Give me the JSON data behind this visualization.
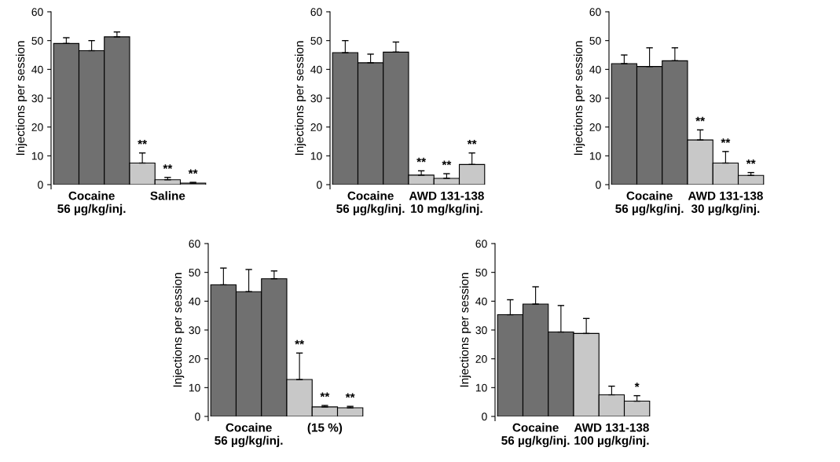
{
  "chart_data": [
    {
      "type": "bar",
      "ylabel": "Injections per session",
      "categories": [
        null,
        "Cocaine\n56 µg/kg/inj.",
        null,
        null,
        "Saline",
        null
      ],
      "values": [
        49,
        46.5,
        51.3,
        7.5,
        1.7,
        0.5
      ],
      "colors": [
        "#707070",
        "#707070",
        "#707070",
        "#c8c8c8",
        "#c8c8c8",
        "#c8c8c8"
      ],
      "errors": [
        [
          49,
          51
        ],
        [
          46.5,
          50
        ],
        [
          51.3,
          53
        ],
        [
          7.5,
          11
        ],
        [
          1.7,
          2.5
        ],
        [
          0.5,
          0.8
        ]
      ],
      "value_labels": [
        null,
        null,
        null,
        "**",
        "**",
        "**"
      ],
      "ylim": [
        0,
        60
      ],
      "yticks": [
        0,
        10,
        20,
        30,
        40,
        50,
        60
      ],
      "grid": false
    },
    {
      "type": "bar",
      "ylabel": "Injections per session",
      "categories": [
        null,
        "Cocaine\n56 µg/kg/inj.",
        null,
        null,
        "AWD 131-138\n10 mg/kg/inj.",
        null
      ],
      "values": [
        45.8,
        42.3,
        46,
        3.3,
        2.2,
        7
      ],
      "colors": [
        "#707070",
        "#707070",
        "#707070",
        "#c8c8c8",
        "#c8c8c8",
        "#c8c8c8"
      ],
      "errors": [
        [
          45.8,
          50
        ],
        [
          42.3,
          45.3
        ],
        [
          46,
          49.5
        ],
        [
          3.3,
          4.8
        ],
        [
          2.2,
          3.8
        ],
        [
          7,
          11
        ]
      ],
      "value_labels": [
        null,
        null,
        null,
        "**",
        "**",
        "**"
      ],
      "ylim": [
        0,
        60
      ],
      "yticks": [
        0,
        10,
        20,
        30,
        40,
        50,
        60
      ],
      "grid": false
    },
    {
      "type": "bar",
      "ylabel": "Injections per session",
      "categories": [
        null,
        "Cocaine\n56 µg/kg/inj.",
        null,
        null,
        "AWD 131-138\n30 µg/kg/inj.",
        null
      ],
      "values": [
        42,
        41,
        43,
        15.5,
        7.5,
        3.2
      ],
      "colors": [
        "#707070",
        "#707070",
        "#707070",
        "#c8c8c8",
        "#c8c8c8",
        "#c8c8c8"
      ],
      "errors": [
        [
          42,
          45
        ],
        [
          41,
          47.5
        ],
        [
          43,
          47.5
        ],
        [
          15.5,
          19
        ],
        [
          7.5,
          11.5
        ],
        [
          3.2,
          4.2
        ]
      ],
      "value_labels": [
        null,
        null,
        null,
        "**",
        "**",
        "**"
      ],
      "ylim": [
        0,
        60
      ],
      "yticks": [
        0,
        10,
        20,
        30,
        40,
        50,
        60
      ],
      "grid": false
    },
    {
      "type": "bar",
      "ylabel": "Injections per session",
      "categories": [
        null,
        "Cocaine\n56 µg/kg/inj.",
        null,
        null,
        "(15 %)",
        null
      ],
      "values": [
        45.7,
        43.3,
        47.8,
        12.8,
        3.3,
        3
      ],
      "colors": [
        "#707070",
        "#707070",
        "#707070",
        "#c8c8c8",
        "#c8c8c8",
        "#c8c8c8"
      ],
      "errors": [
        [
          45.7,
          51.5
        ],
        [
          43.3,
          51
        ],
        [
          47.8,
          50.5
        ],
        [
          12.8,
          22
        ],
        [
          3.3,
          3.8
        ],
        [
          3,
          3.5
        ]
      ],
      "value_labels": [
        null,
        null,
        null,
        "**",
        "**",
        "**"
      ],
      "ylim": [
        0,
        60
      ],
      "yticks": [
        0,
        10,
        20,
        30,
        40,
        50,
        60
      ],
      "grid": false
    },
    {
      "type": "bar",
      "ylabel": "Injections per session",
      "categories": [
        null,
        "Cocaine\n56 µg/kg/inj.",
        null,
        null,
        "AWD 131-138\n100 µg/kg/inj.",
        null
      ],
      "values": [
        35.3,
        39,
        29.3,
        28.8,
        7.5,
        5.3
      ],
      "colors": [
        "#707070",
        "#707070",
        "#707070",
        "#c8c8c8",
        "#c8c8c8",
        "#c8c8c8"
      ],
      "errors": [
        [
          35.3,
          40.5
        ],
        [
          39,
          45
        ],
        [
          29.3,
          38.5
        ],
        [
          28.8,
          34
        ],
        [
          7.5,
          10.5
        ],
        [
          5.3,
          7.2
        ]
      ],
      "value_labels": [
        null,
        null,
        null,
        null,
        null,
        "*"
      ],
      "ylim": [
        0,
        60
      ],
      "yticks": [
        0,
        10,
        20,
        30,
        40,
        50,
        60
      ],
      "grid": false
    }
  ]
}
